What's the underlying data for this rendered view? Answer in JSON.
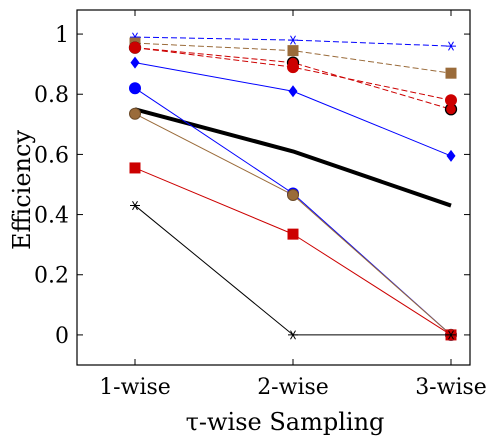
{
  "chart_data": {
    "type": "line",
    "categories": [
      "1-wise",
      "2-wise",
      "3-wise"
    ],
    "xlabel": "τ-wise Sampling",
    "ylabel": "Efficiency",
    "ylim": [
      -0.1,
      1.08
    ],
    "yticks": [
      0,
      0.2,
      0.4,
      0.6,
      0.8,
      1
    ],
    "ytick_labels": [
      "0",
      "0.2",
      "0.4",
      "0.6",
      "0.8",
      "1"
    ],
    "grid": false,
    "series": [
      {
        "values": [
          0.99,
          0.98,
          0.96
        ],
        "color": "#0000ff",
        "dash": "dashed",
        "marker": "star",
        "width": 1
      },
      {
        "values": [
          0.97,
          0.945,
          0.87
        ],
        "color": "#9a6b3a",
        "dash": "dashed",
        "marker": "square",
        "width": 1
      },
      {
        "values": [
          0.955,
          0.905,
          0.75
        ],
        "color": "#cc0000",
        "dash": "dashed",
        "marker": "circle-black-outline",
        "width": 1
      },
      {
        "values": [
          0.955,
          0.89,
          0.78
        ],
        "color": "#cc0000",
        "dash": "dashed",
        "marker": "circle",
        "width": 1
      },
      {
        "values": [
          0.905,
          0.81,
          0.595
        ],
        "color": "#0000ff",
        "dash": "solid",
        "marker": "diamond",
        "width": 1
      },
      {
        "values": [
          0.75,
          0.61,
          0.43
        ],
        "color": "#000000",
        "dash": "solid",
        "marker": "none",
        "width": 4
      },
      {
        "values": [
          0.82,
          0.47,
          0.0
        ],
        "color": "#0000ff",
        "dash": "solid",
        "marker": "circle",
        "width": 1
      },
      {
        "values": [
          0.735,
          0.465,
          0.0
        ],
        "color": "#9a6b3a",
        "dash": "solid",
        "marker": "circle-brown",
        "width": 1
      },
      {
        "values": [
          0.555,
          0.335,
          0.0
        ],
        "color": "#cc0000",
        "dash": "solid",
        "marker": "square",
        "width": 1
      },
      {
        "values": [
          0.43,
          0.0,
          0.0
        ],
        "color": "#000000",
        "dash": "solid",
        "marker": "star",
        "width": 1
      }
    ]
  }
}
